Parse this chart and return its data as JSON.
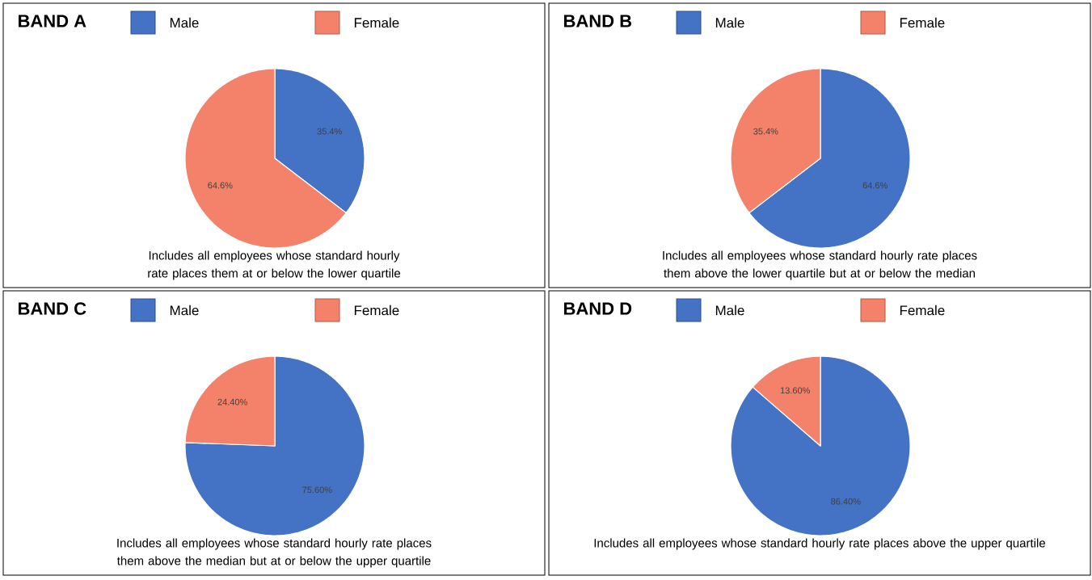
{
  "chart_data": [
    {
      "type": "pie",
      "title": "BAND A",
      "categories": [
        "Male",
        "Female"
      ],
      "values": [
        35.4,
        64.6
      ],
      "colors": [
        "#4472c4",
        "#f4826a"
      ],
      "value_labels": [
        "35.4%",
        "64.6%"
      ],
      "legend": "top",
      "annotations": [
        "Includes all employees whose standard hourly rate places them at or below the lower quartile"
      ]
    },
    {
      "type": "pie",
      "title": "BAND B",
      "categories": [
        "Male",
        "Female"
      ],
      "values": [
        64.6,
        35.4
      ],
      "colors": [
        "#4472c4",
        "#f4826a"
      ],
      "value_labels": [
        "64.6%",
        "35.4%"
      ],
      "legend": "top",
      "annotations": [
        "Includes all employees whose standard hourly rate places them above the lower quartile but at or below the median"
      ]
    },
    {
      "type": "pie",
      "title": "BAND C",
      "categories": [
        "Male",
        "Female"
      ],
      "values": [
        75.6,
        24.4
      ],
      "colors": [
        "#4472c4",
        "#f4826a"
      ],
      "value_labels": [
        "75.60%",
        "24.40%"
      ],
      "legend": "top",
      "annotations": [
        "Includes all employees whose standard hourly rate places them above the median but at or below the upper quartile"
      ]
    },
    {
      "type": "pie",
      "title": "BAND D",
      "categories": [
        "Male",
        "Female"
      ],
      "values": [
        86.4,
        13.6
      ],
      "colors": [
        "#4472c4",
        "#f4826a"
      ],
      "value_labels": [
        "86.40%",
        "13.60%"
      ],
      "legend": "top",
      "annotations": [
        "Includes all employees whose standard hourly rate places above the upper quartile"
      ]
    }
  ]
}
